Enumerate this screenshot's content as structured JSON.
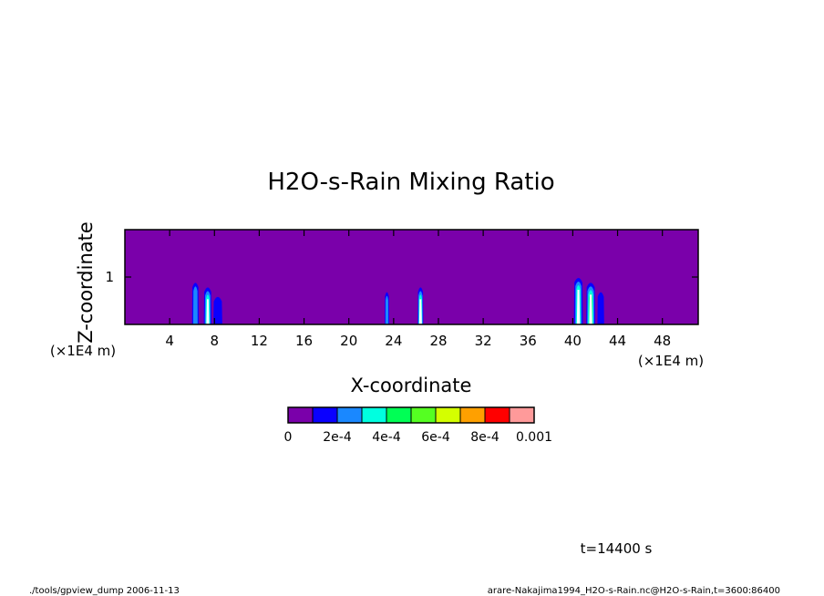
{
  "chart_data": {
    "type": "heatmap",
    "title": "H2O-s-Rain Mixing Ratio",
    "xlabel": "X-coordinate",
    "ylabel": "Z-coordinate",
    "x_unit": "(×1E4 m)",
    "y_unit": "(×1E4 m)",
    "xlim": [
      0,
      51.2
    ],
    "ylim": [
      0,
      2
    ],
    "xticks": [
      4,
      8,
      12,
      16,
      20,
      24,
      28,
      32,
      36,
      40,
      44,
      48
    ],
    "yticks": [
      1
    ],
    "colorbar": {
      "levels": [
        0,
        0.0001,
        0.0002,
        0.0003,
        0.0004,
        0.0005,
        0.0006,
        0.0007,
        0.0008,
        0.0009,
        0.001
      ],
      "colors": [
        "#7a00aa",
        "#0a00ff",
        "#1a88ff",
        "#00ffe0",
        "#00ff55",
        "#55ff22",
        "#d4ff00",
        "#ffa000",
        "#ff0000",
        "#ff9a9a"
      ],
      "tick_labels": [
        "0",
        "2e-4",
        "4e-4",
        "6e-4",
        "8e-4",
        "0.001"
      ]
    },
    "features": [
      {
        "x": 6.3,
        "z": 0.45,
        "w": 0.6,
        "h": 0.9,
        "level": 2
      },
      {
        "x": 7.4,
        "z": 0.4,
        "w": 0.7,
        "h": 0.8,
        "level": 3
      },
      {
        "x": 8.3,
        "z": 0.55,
        "w": 0.8,
        "h": 0.6,
        "level": 1
      },
      {
        "x": 23.4,
        "z": 0.35,
        "w": 0.4,
        "h": 0.7,
        "level": 2
      },
      {
        "x": 26.4,
        "z": 0.35,
        "w": 0.5,
        "h": 0.8,
        "level": 4
      },
      {
        "x": 40.5,
        "z": 0.45,
        "w": 0.8,
        "h": 1.0,
        "level": 3
      },
      {
        "x": 41.6,
        "z": 0.4,
        "w": 0.8,
        "h": 0.9,
        "level": 4
      },
      {
        "x": 42.5,
        "z": 0.5,
        "w": 0.6,
        "h": 0.7,
        "level": 1
      }
    ]
  },
  "footer": {
    "time_label": "t=14400 s",
    "left_text": "./tools/gpview_dump  2006-11-13",
    "right_text": "arare-Nakajima1994_H2O-s-Rain.nc@H2O-s-Rain,t=3600:86400"
  }
}
